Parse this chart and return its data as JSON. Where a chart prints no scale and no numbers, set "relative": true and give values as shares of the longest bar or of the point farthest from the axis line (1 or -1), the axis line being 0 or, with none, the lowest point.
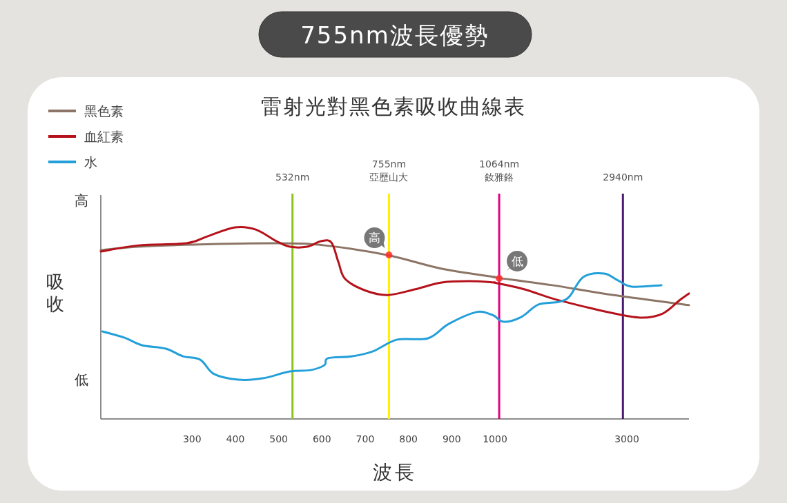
{
  "chart_data": [
    {
      "type": "line",
      "title": "755nm波長優勢",
      "subtitle": "雷射光對黑色素吸收曲線表",
      "xlabel": "波長",
      "ylabel": "吸收",
      "relative": true,
      "legend": "top left",
      "xlim": [
        89,
        1000
      ],
      "xticks": [
        300,
        400,
        500,
        600,
        700,
        800,
        900
      ],
      "annotations": [
        "高",
        "低",
        {
          "text": "高",
          "x": 755,
          "y": 0.856
        }
      ],
      "ref_lines": [
        {
          "axis": "x",
          "value": 532,
          "label": "532nm",
          "color": "#8dc21f"
        },
        {
          "axis": "x",
          "value": 755,
          "label": "755nm\n亞歷山大",
          "color": "#fff000"
        }
      ],
      "series": [
        {
          "name": "黑色素",
          "color": "#8c7566",
          "x": [
            89,
            176,
            303,
            495,
            606,
            750,
            877,
            1000
          ],
          "values": [
            0.881,
            0.899,
            0.91,
            0.917,
            0.906,
            0.856,
            0.784,
            0.741
          ]
        },
        {
          "name": "血紅素",
          "color": "#b5121b",
          "x": [
            89,
            176,
            287,
            335,
            399,
            447,
            495,
            526,
            566,
            598,
            622,
            638,
            654,
            702,
            753,
            814,
            877,
            941,
            1000
          ],
          "values": [
            0.874,
            0.906,
            0.917,
            0.953,
            1.0,
            0.989,
            0.928,
            0.899,
            0.899,
            0.928,
            0.921,
            0.82,
            0.73,
            0.669,
            0.647,
            0.676,
            0.712,
            0.719,
            0.712
          ]
        },
        {
          "name": "水",
          "color": "#239fd9",
          "x": [
            93,
            144,
            184,
            239,
            279,
            319,
            351,
            407,
            463,
            526,
            574,
            606,
            614,
            670,
            718,
            774,
            845,
            893,
            957,
            989,
            1000
          ],
          "values": [
            0.457,
            0.424,
            0.385,
            0.367,
            0.327,
            0.309,
            0.234,
            0.205,
            0.212,
            0.248,
            0.255,
            0.281,
            0.317,
            0.327,
            0.353,
            0.414,
            0.421,
            0.496,
            0.558,
            0.547,
            0.536
          ]
        }
      ]
    },
    {
      "type": "line",
      "relative": true,
      "tick_labels": "x",
      "xlim": [
        1000,
        3942
      ],
      "xticks": [
        1000,
        3000
      ],
      "annotations": [
        {
          "text": "低",
          "x": 1064,
          "y": 0.967
        }
      ],
      "ref_lines": [
        {
          "axis": "x",
          "value": 1064,
          "label": "1064nm\n釹雅鉻",
          "color": "#e4007f"
        },
        {
          "axis": "x",
          "value": 2940,
          "label": "2940nm",
          "color": "#4b1a6e"
        }
      ],
      "series": [
        {
          "color": "#8c7566",
          "x": [
            1000,
            1031,
            1869,
            2707,
            3942
          ],
          "values": [
            0.976,
            0.971,
            0.92,
            0.858,
            0.783
          ]
        },
        {
          "color": "#b5121b",
          "x": [
            1000,
            1031,
            1450,
            1869,
            2393,
            2812,
            3230,
            3545,
            3806,
            3942
          ],
          "values": [
            0.938,
            0.934,
            0.891,
            0.829,
            0.768,
            0.725,
            0.697,
            0.725,
            0.819,
            0.863
          ]
        },
        {
          "color": "#239fd9",
          "x": [
            1000,
            1136,
            1398,
            1660,
            1974,
            2131,
            2340,
            2654,
            2864,
            3073,
            3524
          ],
          "values": [
            0.706,
            0.668,
            0.701,
            0.787,
            0.806,
            0.843,
            0.976,
            1.0,
            0.953,
            0.91,
            0.92
          ]
        }
      ]
    }
  ]
}
